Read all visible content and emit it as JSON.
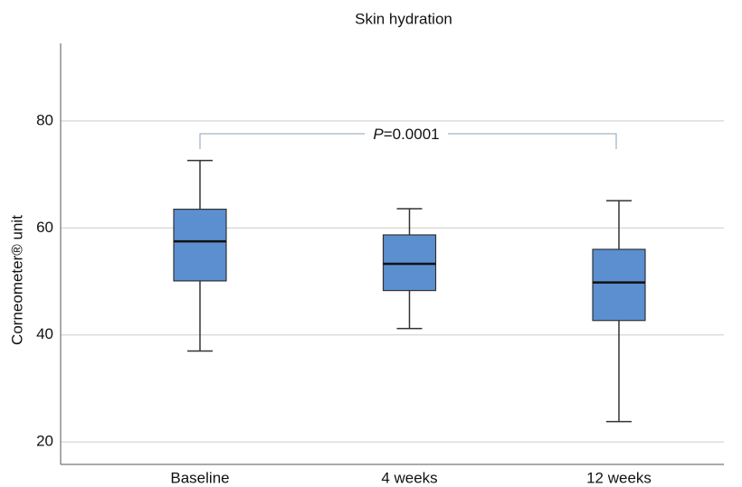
{
  "chart_data": {
    "type": "box",
    "title": "Skin hydration",
    "ylabel": "Corneometer® unit",
    "annotation": {
      "italic": "P",
      "text": "=0.0001"
    },
    "categories": [
      "Baseline",
      "4 weeks",
      "12 weeks"
    ],
    "color": "#5b8fd0",
    "boxes": [
      {
        "low": 37.0,
        "q1": 50.1,
        "median": 57.5,
        "q3": 63.5,
        "high": 72.6
      },
      {
        "low": 41.2,
        "q1": 48.3,
        "median": 53.3,
        "q3": 58.7,
        "high": 63.6
      },
      {
        "low": 23.8,
        "q1": 42.7,
        "median": 49.8,
        "q3": 56.0,
        "high": 65.1
      }
    ],
    "ylim": [
      15.8,
      94.5
    ],
    "yticks": [
      20,
      40,
      60,
      80
    ],
    "grid": true
  }
}
